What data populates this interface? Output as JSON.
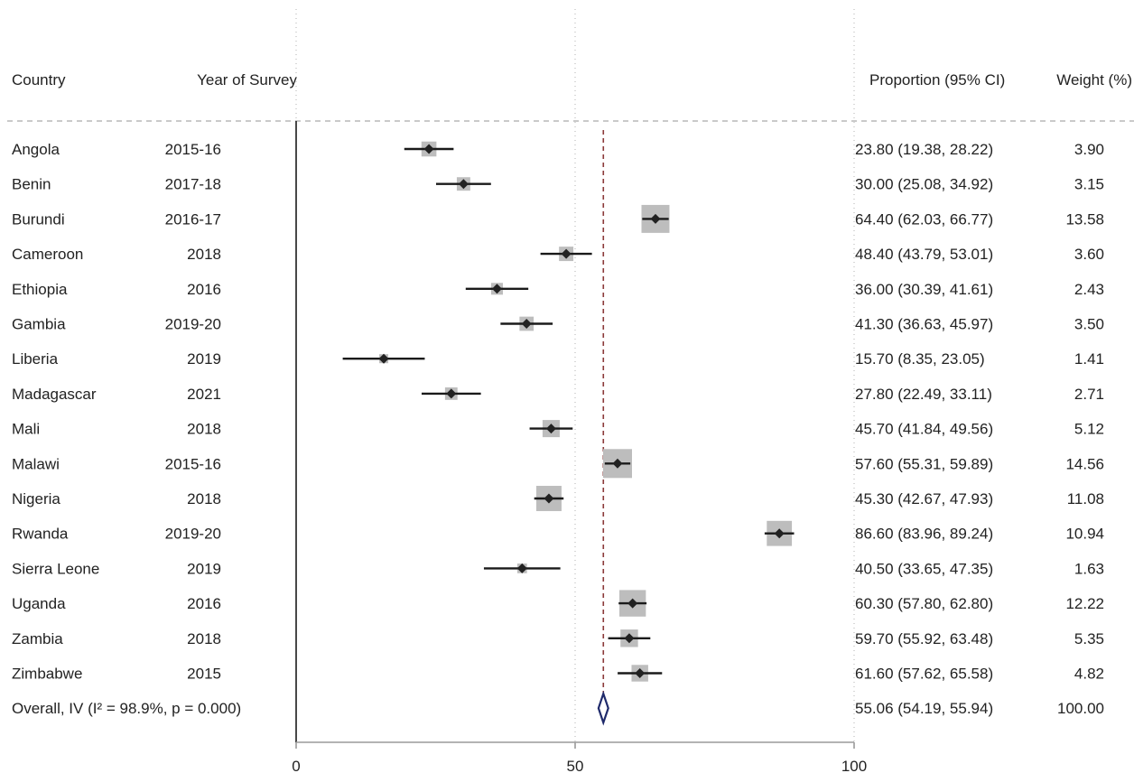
{
  "chart_data": {
    "type": "forest",
    "headers": {
      "country": "Country",
      "year": "Year of Survey",
      "estimate": "Proportion (95% CI)",
      "weight": "Weight (%)"
    },
    "xlim": [
      0,
      100
    ],
    "xticks": [
      0,
      50,
      100
    ],
    "overall_line_value": 55.06,
    "studies": [
      {
        "country": "Angola",
        "year": "2015-16",
        "estimate": 23.8,
        "lower": 19.38,
        "upper": 28.22,
        "weight": 3.9,
        "ci_text": "23.80 (19.38, 28.22)",
        "weight_text": "3.90"
      },
      {
        "country": "Benin",
        "year": "2017-18",
        "estimate": 30.0,
        "lower": 25.08,
        "upper": 34.92,
        "weight": 3.15,
        "ci_text": "30.00 (25.08, 34.92)",
        "weight_text": "3.15"
      },
      {
        "country": "Burundi",
        "year": "2016-17",
        "estimate": 64.4,
        "lower": 62.03,
        "upper": 66.77,
        "weight": 13.58,
        "ci_text": "64.40 (62.03, 66.77)",
        "weight_text": "13.58"
      },
      {
        "country": "Cameroon",
        "year": "2018",
        "estimate": 48.4,
        "lower": 43.79,
        "upper": 53.01,
        "weight": 3.6,
        "ci_text": "48.40 (43.79, 53.01)",
        "weight_text": "3.60"
      },
      {
        "country": "Ethiopia",
        "year": "2016",
        "estimate": 36.0,
        "lower": 30.39,
        "upper": 41.61,
        "weight": 2.43,
        "ci_text": "36.00 (30.39, 41.61)",
        "weight_text": "2.43"
      },
      {
        "country": "Gambia",
        "year": "2019-20",
        "estimate": 41.3,
        "lower": 36.63,
        "upper": 45.97,
        "weight": 3.5,
        "ci_text": "41.30 (36.63, 45.97)",
        "weight_text": "3.50"
      },
      {
        "country": "Liberia",
        "year": "2019",
        "estimate": 15.7,
        "lower": 8.35,
        "upper": 23.05,
        "weight": 1.41,
        "ci_text": "15.70 (8.35, 23.05)",
        "weight_text": "1.41"
      },
      {
        "country": "Madagascar",
        "year": "2021",
        "estimate": 27.8,
        "lower": 22.49,
        "upper": 33.11,
        "weight": 2.71,
        "ci_text": "27.80 (22.49, 33.11)",
        "weight_text": "2.71"
      },
      {
        "country": "Mali",
        "year": "2018",
        "estimate": 45.7,
        "lower": 41.84,
        "upper": 49.56,
        "weight": 5.12,
        "ci_text": "45.70 (41.84, 49.56)",
        "weight_text": "5.12"
      },
      {
        "country": "Malawi",
        "year": "2015-16",
        "estimate": 57.6,
        "lower": 55.31,
        "upper": 59.89,
        "weight": 14.56,
        "ci_text": "57.60 (55.31, 59.89)",
        "weight_text": "14.56"
      },
      {
        "country": "Nigeria",
        "year": "2018",
        "estimate": 45.3,
        "lower": 42.67,
        "upper": 47.93,
        "weight": 11.08,
        "ci_text": "45.30 (42.67, 47.93)",
        "weight_text": "11.08"
      },
      {
        "country": "Rwanda",
        "year": "2019-20",
        "estimate": 86.6,
        "lower": 83.96,
        "upper": 89.24,
        "weight": 10.94,
        "ci_text": "86.60 (83.96, 89.24)",
        "weight_text": "10.94"
      },
      {
        "country": "Sierra Leone",
        "year": "2019",
        "estimate": 40.5,
        "lower": 33.65,
        "upper": 47.35,
        "weight": 1.63,
        "ci_text": "40.50 (33.65, 47.35)",
        "weight_text": "1.63"
      },
      {
        "country": "Uganda",
        "year": "2016",
        "estimate": 60.3,
        "lower": 57.8,
        "upper": 62.8,
        "weight": 12.22,
        "ci_text": "60.30 (57.80, 62.80)",
        "weight_text": "12.22"
      },
      {
        "country": "Zambia",
        "year": "2018",
        "estimate": 59.7,
        "lower": 55.92,
        "upper": 63.48,
        "weight": 5.35,
        "ci_text": "59.70 (55.92, 63.48)",
        "weight_text": "5.35"
      },
      {
        "country": "Zimbabwe",
        "year": "2015",
        "estimate": 61.6,
        "lower": 57.62,
        "upper": 65.58,
        "weight": 4.82,
        "ci_text": "61.60 (57.62, 65.58)",
        "weight_text": "4.82"
      }
    ],
    "overall": {
      "label": "Overall, IV (I² = 98.9%, p = 0.000)",
      "estimate": 55.06,
      "lower": 54.19,
      "upper": 55.94,
      "weight": 100.0,
      "ci_text": "55.06 (54.19, 55.94)",
      "weight_text": "100.00"
    },
    "colors": {
      "text": "#222222",
      "ci_line": "#1a1a1a",
      "weight_box": "#bdbdbd",
      "point": "#222222",
      "overall_diamond": "#1f2a6b",
      "overall_line": "#8b3a3a",
      "gridline": "#b0b0b0",
      "axis": "#9a9a9a",
      "null_line": "#1a1a1a"
    }
  }
}
